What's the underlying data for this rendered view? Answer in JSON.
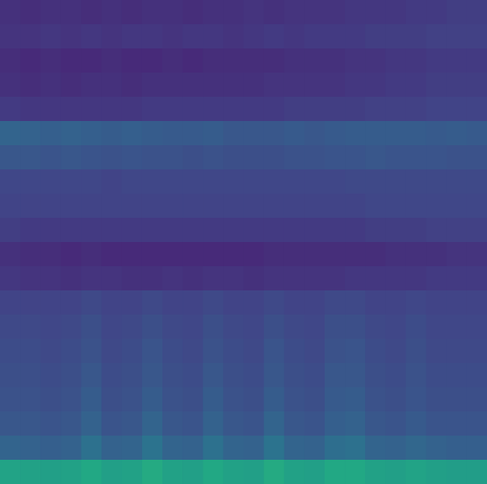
{
  "chart_data": {
    "type": "heatmap",
    "tick_labels": false,
    "zlim": [
      0,
      1
    ],
    "cells": [
      [
        0.14,
        0.13,
        0.14,
        0.14,
        0.13,
        0.14,
        0.13,
        0.14,
        0.14,
        0.13,
        0.14,
        0.14,
        0.15,
        0.14,
        0.15,
        0.15,
        0.15,
        0.16,
        0.16,
        0.16,
        0.17,
        0.17,
        0.18,
        0.18
      ],
      [
        0.15,
        0.15,
        0.16,
        0.15,
        0.16,
        0.15,
        0.16,
        0.16,
        0.15,
        0.16,
        0.16,
        0.15,
        0.16,
        0.17,
        0.16,
        0.17,
        0.17,
        0.17,
        0.18,
        0.18,
        0.18,
        0.19,
        0.19,
        0.19
      ],
      [
        0.13,
        0.12,
        0.13,
        0.12,
        0.12,
        0.13,
        0.12,
        0.12,
        0.13,
        0.12,
        0.13,
        0.13,
        0.13,
        0.13,
        0.14,
        0.14,
        0.14,
        0.15,
        0.15,
        0.16,
        0.16,
        0.17,
        0.17,
        0.17
      ],
      [
        0.14,
        0.13,
        0.14,
        0.13,
        0.14,
        0.14,
        0.13,
        0.14,
        0.14,
        0.14,
        0.14,
        0.14,
        0.14,
        0.15,
        0.15,
        0.15,
        0.15,
        0.16,
        0.16,
        0.17,
        0.17,
        0.18,
        0.18,
        0.18
      ],
      [
        0.17,
        0.16,
        0.16,
        0.16,
        0.16,
        0.16,
        0.16,
        0.17,
        0.17,
        0.17,
        0.17,
        0.17,
        0.17,
        0.17,
        0.18,
        0.18,
        0.18,
        0.18,
        0.19,
        0.19,
        0.19,
        0.2,
        0.2,
        0.2
      ],
      [
        0.32,
        0.31,
        0.3,
        0.31,
        0.3,
        0.29,
        0.3,
        0.29,
        0.28,
        0.28,
        0.29,
        0.27,
        0.27,
        0.27,
        0.28,
        0.27,
        0.28,
        0.29,
        0.29,
        0.29,
        0.29,
        0.28,
        0.29,
        0.28
      ],
      [
        0.27,
        0.27,
        0.26,
        0.27,
        0.26,
        0.25,
        0.26,
        0.25,
        0.25,
        0.24,
        0.25,
        0.24,
        0.24,
        0.24,
        0.25,
        0.25,
        0.26,
        0.26,
        0.27,
        0.26,
        0.26,
        0.26,
        0.25,
        0.25
      ],
      [
        0.21,
        0.21,
        0.21,
        0.21,
        0.21,
        0.2,
        0.21,
        0.21,
        0.21,
        0.21,
        0.21,
        0.21,
        0.21,
        0.21,
        0.21,
        0.21,
        0.21,
        0.22,
        0.22,
        0.22,
        0.22,
        0.22,
        0.22,
        0.22
      ],
      [
        0.2,
        0.2,
        0.2,
        0.2,
        0.2,
        0.2,
        0.2,
        0.2,
        0.2,
        0.2,
        0.2,
        0.2,
        0.2,
        0.2,
        0.2,
        0.2,
        0.2,
        0.2,
        0.21,
        0.21,
        0.21,
        0.21,
        0.21,
        0.21
      ],
      [
        0.18,
        0.17,
        0.17,
        0.17,
        0.17,
        0.17,
        0.17,
        0.17,
        0.17,
        0.17,
        0.17,
        0.17,
        0.17,
        0.17,
        0.17,
        0.17,
        0.17,
        0.17,
        0.18,
        0.18,
        0.18,
        0.19,
        0.19,
        0.19
      ],
      [
        0.14,
        0.13,
        0.13,
        0.12,
        0.13,
        0.12,
        0.12,
        0.12,
        0.12,
        0.12,
        0.12,
        0.12,
        0.12,
        0.13,
        0.13,
        0.13,
        0.13,
        0.13,
        0.13,
        0.14,
        0.14,
        0.14,
        0.15,
        0.15
      ],
      [
        0.16,
        0.15,
        0.15,
        0.14,
        0.15,
        0.15,
        0.14,
        0.14,
        0.15,
        0.14,
        0.15,
        0.15,
        0.14,
        0.15,
        0.15,
        0.15,
        0.15,
        0.16,
        0.16,
        0.16,
        0.16,
        0.17,
        0.17,
        0.17
      ],
      [
        0.2,
        0.2,
        0.2,
        0.2,
        0.22,
        0.2,
        0.2,
        0.22,
        0.2,
        0.2,
        0.22,
        0.2,
        0.2,
        0.22,
        0.2,
        0.2,
        0.22,
        0.22,
        0.2,
        0.2,
        0.21,
        0.2,
        0.2,
        0.2
      ],
      [
        0.22,
        0.22,
        0.21,
        0.22,
        0.24,
        0.21,
        0.22,
        0.24,
        0.22,
        0.21,
        0.24,
        0.22,
        0.21,
        0.24,
        0.22,
        0.21,
        0.24,
        0.24,
        0.22,
        0.21,
        0.23,
        0.21,
        0.21,
        0.21
      ],
      [
        0.23,
        0.23,
        0.22,
        0.23,
        0.25,
        0.22,
        0.23,
        0.26,
        0.23,
        0.22,
        0.25,
        0.23,
        0.22,
        0.26,
        0.23,
        0.22,
        0.25,
        0.26,
        0.23,
        0.22,
        0.24,
        0.22,
        0.22,
        0.22
      ],
      [
        0.24,
        0.24,
        0.23,
        0.24,
        0.27,
        0.23,
        0.24,
        0.27,
        0.24,
        0.23,
        0.27,
        0.24,
        0.23,
        0.27,
        0.24,
        0.23,
        0.27,
        0.27,
        0.24,
        0.23,
        0.25,
        0.23,
        0.23,
        0.23
      ],
      [
        0.25,
        0.25,
        0.24,
        0.25,
        0.29,
        0.24,
        0.25,
        0.29,
        0.25,
        0.24,
        0.29,
        0.25,
        0.24,
        0.29,
        0.25,
        0.24,
        0.28,
        0.29,
        0.25,
        0.24,
        0.26,
        0.24,
        0.24,
        0.24
      ],
      [
        0.27,
        0.27,
        0.26,
        0.27,
        0.31,
        0.26,
        0.27,
        0.32,
        0.27,
        0.26,
        0.31,
        0.27,
        0.26,
        0.32,
        0.27,
        0.26,
        0.3,
        0.31,
        0.27,
        0.26,
        0.28,
        0.26,
        0.26,
        0.26
      ],
      [
        0.32,
        0.31,
        0.3,
        0.31,
        0.37,
        0.31,
        0.32,
        0.38,
        0.32,
        0.31,
        0.37,
        0.32,
        0.31,
        0.38,
        0.32,
        0.31,
        0.36,
        0.37,
        0.32,
        0.31,
        0.33,
        0.31,
        0.3,
        0.3
      ],
      [
        0.58,
        0.57,
        0.56,
        0.57,
        0.6,
        0.56,
        0.57,
        0.61,
        0.57,
        0.56,
        0.6,
        0.57,
        0.56,
        0.61,
        0.57,
        0.56,
        0.6,
        0.6,
        0.57,
        0.56,
        0.58,
        0.56,
        0.55,
        0.55
      ]
    ]
  }
}
